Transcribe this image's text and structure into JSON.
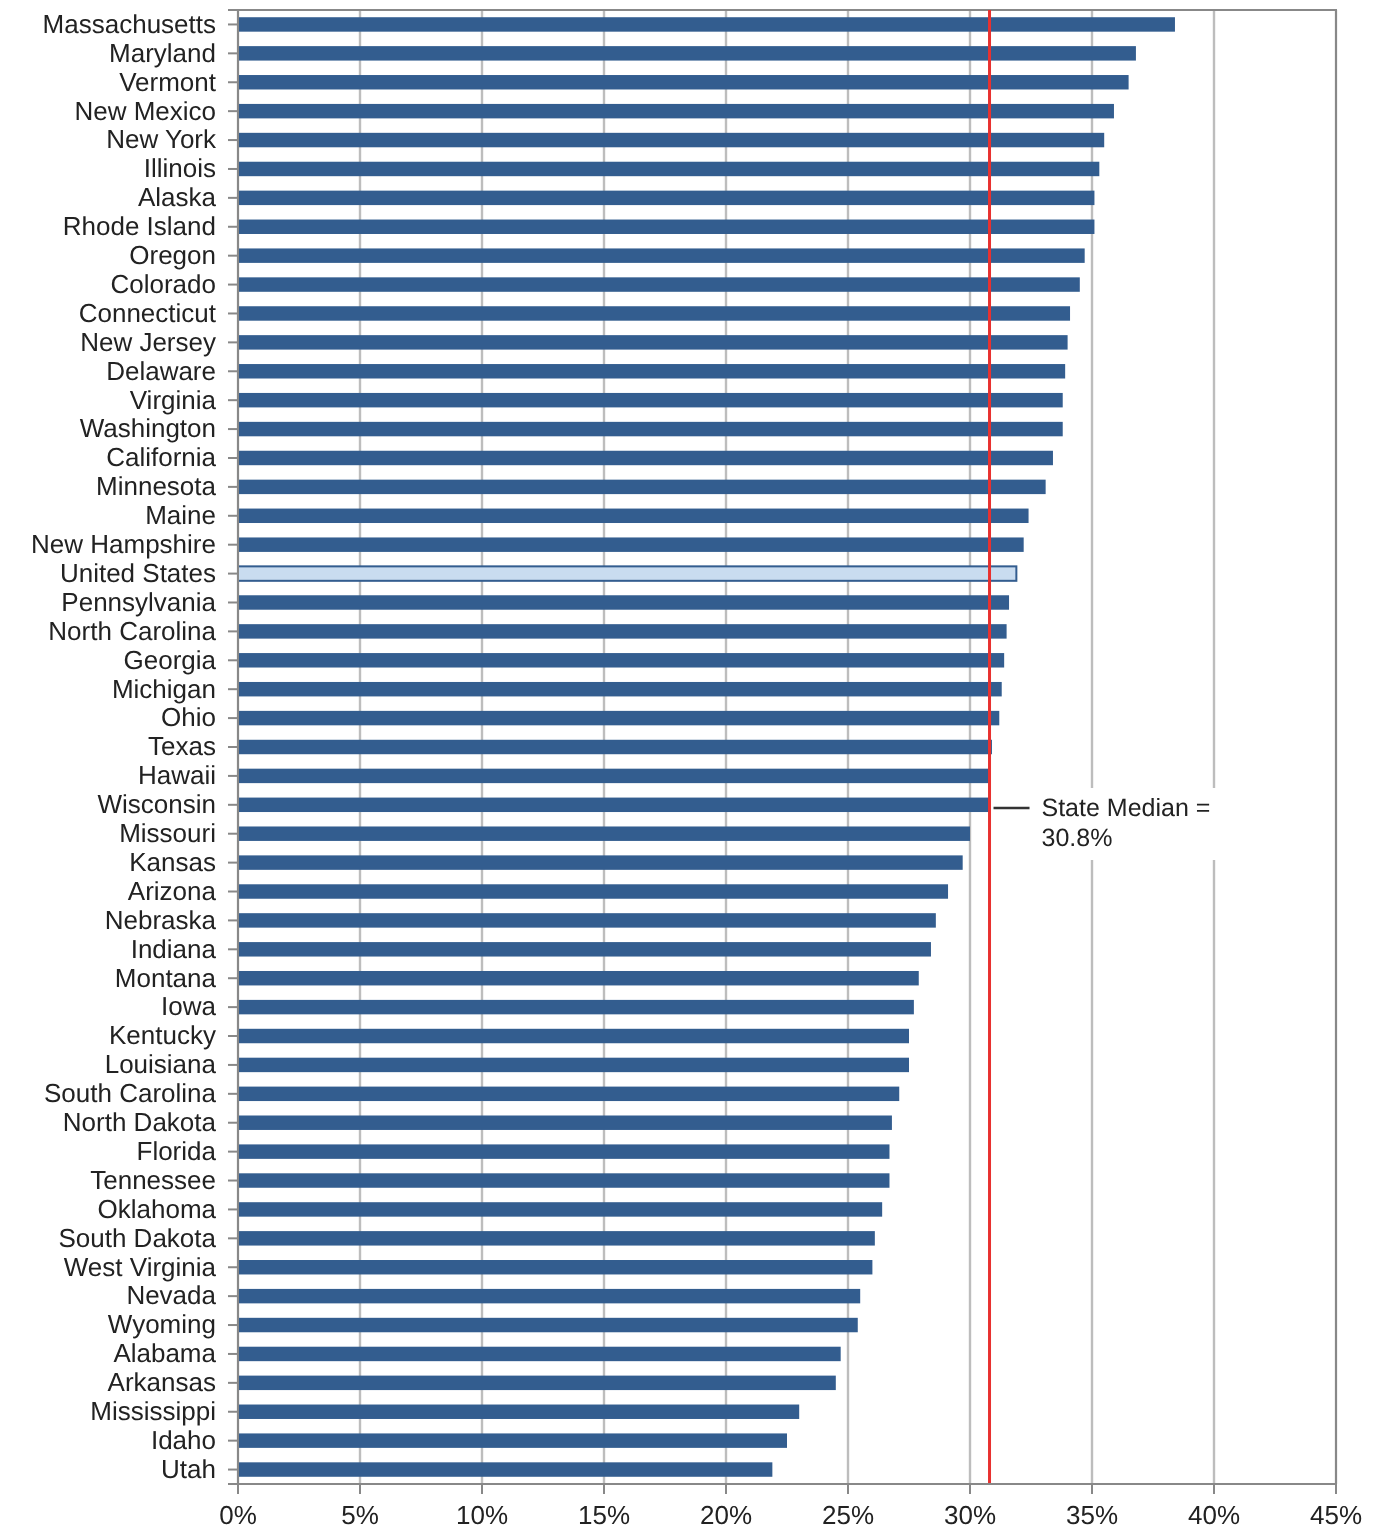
{
  "chart_data": {
    "type": "bar",
    "orientation": "horizontal",
    "categories": [
      "Massachusetts",
      "Maryland",
      "Vermont",
      "New Mexico",
      "New York",
      "Illinois",
      "Alaska",
      "Rhode Island",
      "Oregon",
      "Colorado",
      "Connecticut",
      "New Jersey",
      "Delaware",
      "Virginia",
      "Washington",
      "California",
      "Minnesota",
      "Maine",
      "New Hampshire",
      "United States",
      "Pennsylvania",
      "North Carolina",
      "Georgia",
      "Michigan",
      "Ohio",
      "Texas",
      "Hawaii",
      "Wisconsin",
      "Missouri",
      "Kansas",
      "Arizona",
      "Nebraska",
      "Indiana",
      "Montana",
      "Iowa",
      "Kentucky",
      "Louisiana",
      "South Carolina",
      "North Dakota",
      "Florida",
      "Tennessee",
      "Oklahoma",
      "South Dakota",
      "West Virginia",
      "Nevada",
      "Wyoming",
      "Alabama",
      "Arkansas",
      "Mississippi",
      "Idaho",
      "Utah"
    ],
    "values": [
      38.4,
      36.8,
      36.5,
      35.9,
      35.5,
      35.3,
      35.1,
      35.1,
      34.7,
      34.5,
      34.1,
      34.0,
      33.9,
      33.8,
      33.8,
      33.4,
      33.1,
      32.4,
      32.2,
      31.9,
      31.6,
      31.5,
      31.4,
      31.3,
      31.2,
      30.9,
      30.8,
      30.8,
      30.0,
      29.7,
      29.1,
      28.6,
      28.4,
      27.9,
      27.7,
      27.5,
      27.5,
      27.1,
      26.8,
      26.7,
      26.7,
      26.4,
      26.1,
      26.0,
      25.5,
      25.4,
      24.7,
      24.5,
      23.0,
      22.5,
      21.9
    ],
    "colors": [
      "#335d8f",
      "#335d8f",
      "#335d8f",
      "#335d8f",
      "#335d8f",
      "#335d8f",
      "#335d8f",
      "#335d8f",
      "#335d8f",
      "#335d8f",
      "#335d8f",
      "#335d8f",
      "#335d8f",
      "#335d8f",
      "#335d8f",
      "#335d8f",
      "#335d8f",
      "#335d8f",
      "#335d8f",
      "#c9dcf0",
      "#335d8f",
      "#335d8f",
      "#335d8f",
      "#335d8f",
      "#335d8f",
      "#335d8f",
      "#335d8f",
      "#335d8f",
      "#335d8f",
      "#335d8f",
      "#335d8f",
      "#335d8f",
      "#335d8f",
      "#335d8f",
      "#335d8f",
      "#335d8f",
      "#335d8f",
      "#335d8f",
      "#335d8f",
      "#335d8f",
      "#335d8f",
      "#335d8f",
      "#335d8f",
      "#335d8f",
      "#335d8f",
      "#335d8f",
      "#335d8f",
      "#335d8f",
      "#335d8f",
      "#335d8f",
      "#335d8f"
    ],
    "xlim": [
      0,
      45
    ],
    "xticks": [
      {
        "value": 0,
        "label": "0%"
      },
      {
        "value": 5,
        "label": "5%"
      },
      {
        "value": 10,
        "label": "10%"
      },
      {
        "value": 15,
        "label": "15%"
      },
      {
        "value": 20,
        "label": "20%"
      },
      {
        "value": 25,
        "label": "25%"
      },
      {
        "value": 30,
        "label": "30%"
      },
      {
        "value": 35,
        "label": "35%"
      },
      {
        "value": 40,
        "label": "40%"
      },
      {
        "value": 45,
        "label": "45%"
      }
    ],
    "grid": "x",
    "ref_lines": [
      {
        "axis": "x",
        "value": 30.8,
        "label": "State Median = 30.8%",
        "color": "#e8312f"
      }
    ]
  }
}
